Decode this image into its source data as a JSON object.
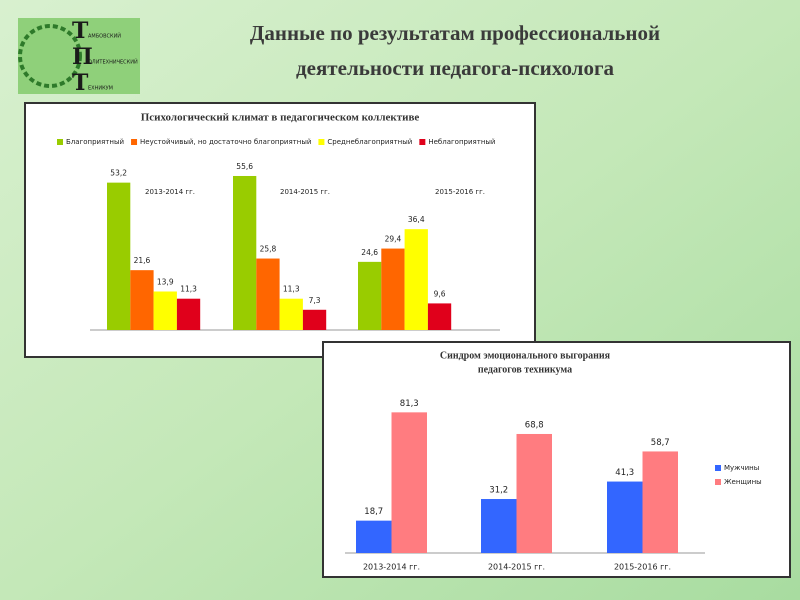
{
  "header": {
    "title_lines": [
      "Данные по результатам профессиональной",
      "деятельности педагога-психолога"
    ]
  },
  "logo": {
    "letters": [
      "Т",
      "П",
      "Т"
    ],
    "words": [
      "АМБОВСКИЙ",
      "ОЛИТЕХНИЧЕСКИЙ",
      "ЕХНИКУМ"
    ]
  },
  "chart_data": [
    {
      "type": "bar",
      "title": "Психологический климат в педагогическом коллективе",
      "categories": [
        "2013-2014 гг.",
        "2014-2015 гг.",
        "2015-2016 гг."
      ],
      "series": [
        {
          "name": "Благоприятный",
          "color": "#99cc00",
          "values": [
            53.2,
            55.6,
            24.6
          ],
          "value_labels": [
            "53,2",
            "55,6",
            "24,6"
          ]
        },
        {
          "name": "Неустойчивый, но достаточно благоприятный",
          "color": "#ff6600",
          "values": [
            21.6,
            25.8,
            29.4
          ],
          "value_labels": [
            "21,6",
            "25,8",
            "29,4"
          ]
        },
        {
          "name": "Среднеблагоприятный",
          "color": "#ffff00",
          "values": [
            13.9,
            11.3,
            36.4
          ],
          "value_labels": [
            "13,9",
            "11,3",
            "36,4"
          ]
        },
        {
          "name": "Неблагоприятный",
          "color": "#e0001b",
          "values": [
            11.3,
            7.3,
            9.6
          ],
          "value_labels": [
            "11,3",
            "7,3",
            "9,6"
          ]
        }
      ],
      "legend": "top"
    },
    {
      "type": "bar",
      "title": [
        "Синдром эмоционального выгорания",
        "педагогов техникума"
      ],
      "categories": [
        "2013-2014 гг.",
        "2014-2015 гг.",
        "2015-2016 гг."
      ],
      "series": [
        {
          "name": "Мужчины",
          "color": "#3366ff",
          "values": [
            18.7,
            31.2,
            41.3
          ],
          "value_labels": [
            "18,7",
            "31,2",
            "41,3"
          ]
        },
        {
          "name": "Женщины",
          "color": "#ff7c80",
          "values": [
            81.3,
            68.8,
            58.7
          ],
          "value_labels": [
            "81,3",
            "68,8",
            "58,7"
          ]
        }
      ],
      "legend": "right"
    }
  ]
}
